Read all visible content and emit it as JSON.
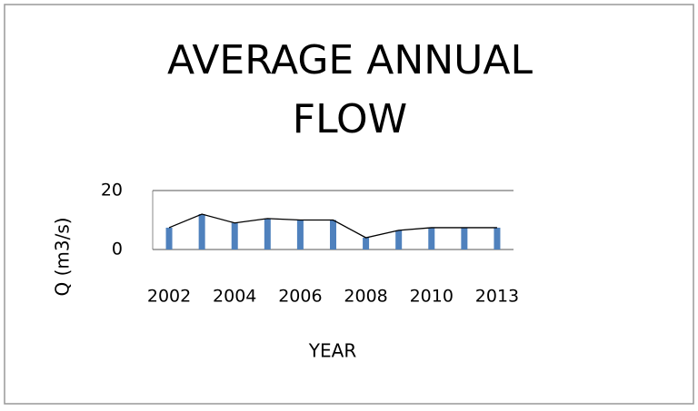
{
  "chart_data": {
    "type": "bar",
    "title": [
      "AVERAGE ANNUAL",
      "FLOW"
    ],
    "y_label": "Q (m3/s)",
    "x_label": "YEAR",
    "categories": [
      "2002",
      null,
      "2004",
      null,
      "2006",
      null,
      "2008",
      null,
      "2010",
      null,
      "2013"
    ],
    "series": [
      {
        "type": "bar",
        "color": "#4f81bd",
        "values": [
          7.4,
          12,
          9,
          10.5,
          10,
          10,
          4,
          6.5,
          7.4,
          7.4,
          7.4
        ]
      },
      {
        "type": "line",
        "color": "#000000",
        "values": [
          7.4,
          12,
          9,
          10.5,
          10,
          10,
          4,
          6.5,
          7.4,
          7.4,
          7.4
        ]
      }
    ],
    "ylim": [
      0,
      20
    ],
    "yticks": [
      0,
      20
    ],
    "grid": true
  }
}
